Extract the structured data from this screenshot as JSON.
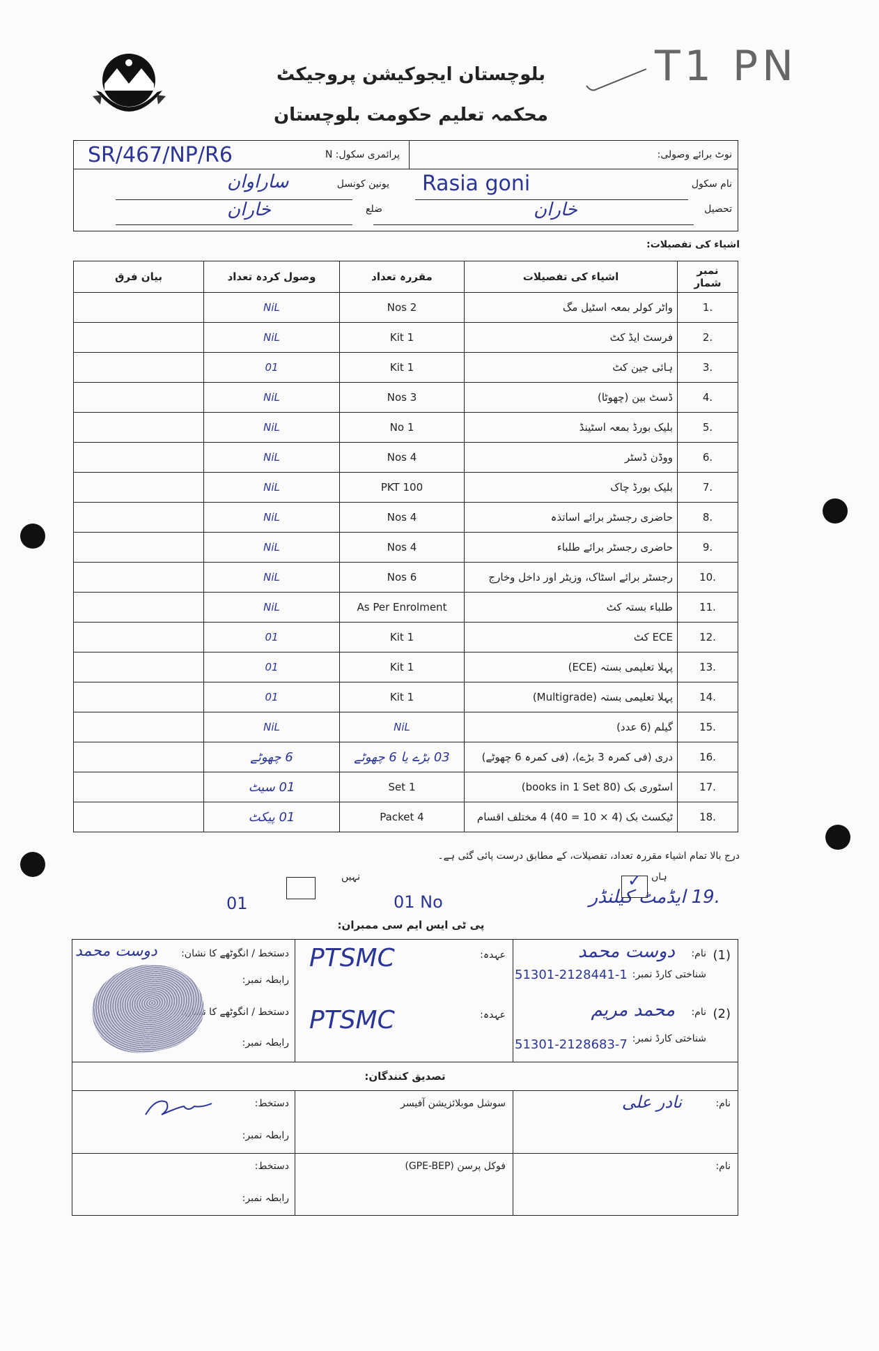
{
  "header": {
    "logo": "Government of Balochistan seal",
    "title_line1": "بلوچستان ایجوکیشن پروجیکٹ",
    "title_line2": "محکمہ تعلیم حکومت بلوچستان",
    "annotation": "T1 PN"
  },
  "school_box": {
    "receipt_note_label": "نوٹ برائے وصولی:",
    "primary_school_label": "پرائمری سکول: N",
    "school_code": "SR/467/NP/R6",
    "school_name_label": "نام سکول",
    "school_name": "Rasia goni",
    "union_council_label": "یونین کونسل",
    "union_council": "ساراوان",
    "tehsil_label": "تحصیل",
    "tehsil": "خاران",
    "district_label": "ضلع",
    "district": "خاران"
  },
  "items_title": "اشیاء کی تفصیلات:",
  "items_table": {
    "columns": [
      "نمبر شمار",
      "اشیاء کی تفصیلات",
      "مقررہ تعداد",
      "وصول کردہ تعداد",
      "بیان فرق"
    ],
    "rows": [
      {
        "no": ".1",
        "details": "واٹر کولر بمعہ اسٹیل مگ",
        "prescribed": "2 Nos",
        "received": "NiL",
        "difference": ""
      },
      {
        "no": ".2",
        "details": "فرسٹ ایڈ کٹ",
        "prescribed": "1 Kit",
        "received": "NiL",
        "difference": ""
      },
      {
        "no": ".3",
        "details": "ہائی جین کٹ",
        "prescribed": "1 Kit",
        "received": "01",
        "difference": ""
      },
      {
        "no": ".4",
        "details": "ڈسٹ بین (چھوٹا)",
        "prescribed": "3 Nos",
        "received": "NiL",
        "difference": ""
      },
      {
        "no": ".5",
        "details": "بلیک بورڈ بمعہ اسٹینڈ",
        "prescribed": "1 No",
        "received": "NiL",
        "difference": ""
      },
      {
        "no": ".6",
        "details": "ووڈن ڈسٹر",
        "prescribed": "4 Nos",
        "received": "NiL",
        "difference": ""
      },
      {
        "no": ".7",
        "details": "بلیک بورڈ چاک",
        "prescribed": "100 PKT",
        "received": "NiL",
        "difference": ""
      },
      {
        "no": ".8",
        "details": "حاضری رجسٹر برائے اساتذہ",
        "prescribed": "4 Nos",
        "received": "NiL",
        "difference": ""
      },
      {
        "no": ".9",
        "details": "حاضری رجسٹر برائے طلباء",
        "prescribed": "4 Nos",
        "received": "NiL",
        "difference": ""
      },
      {
        "no": ".10",
        "details": "رجسٹر برائے اسٹاک، وزیٹر اور داخل وخارج",
        "prescribed": "6 Nos",
        "received": "NiL",
        "difference": ""
      },
      {
        "no": ".11",
        "details": "طلباء بستہ کٹ",
        "prescribed": "As Per Enrolment",
        "received": "NiL",
        "difference": ""
      },
      {
        "no": ".12",
        "details": "ECE کٹ",
        "prescribed": "1 Kit",
        "received": "01",
        "difference": ""
      },
      {
        "no": ".13",
        "details": "پہلا تعلیمی بستہ (ECE)",
        "prescribed": "1 Kit",
        "received": "01",
        "difference": ""
      },
      {
        "no": ".14",
        "details": "پہلا تعلیمی بستہ (Multigrade)",
        "prescribed": "1 Kit",
        "received": "01",
        "difference": ""
      },
      {
        "no": ".15",
        "details": "گیلم (6 عدد)",
        "prescribed": "",
        "prescribed_handwritten": "NiL",
        "received": "NiL",
        "difference": ""
      },
      {
        "no": ".16",
        "details": "دری (فی کمرہ 3 بڑے)، (فی کمرہ 6 چھوٹے)",
        "prescribed": "",
        "prescribed_handwritten": "03 بڑے یا 6 چھوٹے",
        "received": "6 چھوٹے",
        "difference": ""
      },
      {
        "no": ".17",
        "details": "اسٹوری بک (80 books in 1 Set)",
        "prescribed": "1 Set",
        "received": "01 سیٹ",
        "difference": ""
      },
      {
        "no": ".18",
        "details": "ٹیکسٹ بک (4 × 10 = 40) 4 مختلف اقسام",
        "prescribed": "4 Packet",
        "received": "01 پیکٹ",
        "difference": ""
      }
    ]
  },
  "statement": "درج بالا تمام اشیاء مقررہ تعداد، تفصیلات، کے مطابق درست پائی گئی ہے۔",
  "item19": {
    "label": ".19 ایڈمٹ کیلنڈر",
    "yes_label": "ہاں",
    "yes_checked": true,
    "no_label": "نہیں",
    "no_checked": false,
    "received": "01 No",
    "received_alt": "01"
  },
  "members": {
    "title": "پی ٹی ایس ایم سی ممبران:",
    "name_label": "نام:",
    "cnic_label": "شناختی کارڈ نمبر:",
    "designation_label": "عہدہ:",
    "signature_label": "دستخط / انگوٹھے کا نشان:",
    "contact_label": "رابطہ نمبر:",
    "list": [
      {
        "index": "(1)",
        "name": "دوست محمد",
        "cnic": "51301-2128441-1",
        "designation": "PTSMC",
        "signature": "دوست محمد"
      },
      {
        "index": "(2)",
        "name": "محمد مریم",
        "cnic": "51301-2128683-7",
        "designation": "PTSMC",
        "signature": ""
      }
    ]
  },
  "verifiers": {
    "title": "تصدیق کنندگان:",
    "name_label": "نام:",
    "signature_label": "دستخط:",
    "contact_label": "رابطہ نمبر:",
    "list": [
      {
        "name": "نادر علی",
        "designation": "سوشل موبلائزیشن آفیسر"
      },
      {
        "name": "",
        "designation": "فوکل پرسن (GPE-BEP)"
      }
    ]
  },
  "colors": {
    "ink": "#2b3596",
    "print": "#222222"
  }
}
